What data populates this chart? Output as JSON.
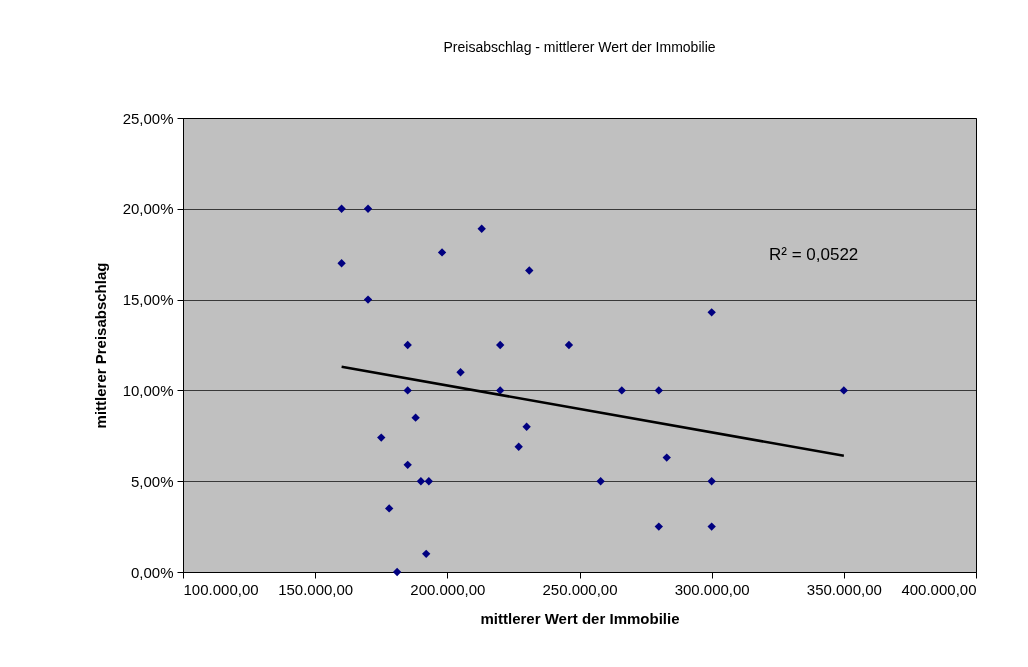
{
  "chart_data": {
    "type": "scatter",
    "title": "Preisabschlag - mittlerer Wert der Immobilie",
    "xlabel": "mittlerer Wert der Immobilie",
    "ylabel": "mittlerer Preisabschlag",
    "xlim": [
      100000,
      400000
    ],
    "xticks": [
      {
        "value": 100000,
        "label": "100.000,00"
      },
      {
        "value": 150000,
        "label": "150.000,00"
      },
      {
        "value": 200000,
        "label": "200.000,00"
      },
      {
        "value": 250000,
        "label": "250.000,00"
      },
      {
        "value": 300000,
        "label": "300.000,00"
      },
      {
        "value": 350000,
        "label": "350.000,00"
      },
      {
        "value": 400000,
        "label": "400.000,00"
      }
    ],
    "ylim": [
      0,
      25
    ],
    "yticks": [
      {
        "value": 0,
        "label": "0,00%"
      },
      {
        "value": 5,
        "label": "5,00%"
      },
      {
        "value": 10,
        "label": "10,00%"
      },
      {
        "value": 15,
        "label": "15,00%"
      },
      {
        "value": 20,
        "label": "20,00%"
      },
      {
        "value": 25,
        "label": "25,00%"
      }
    ],
    "grid": "y",
    "annotations": [
      "R² = 0,0522"
    ],
    "series": [
      {
        "marker": "diamond",
        "color": "#000080",
        "x": [
          160000,
          170000,
          213000,
          198000,
          160000,
          231000,
          170000,
          185000,
          220000,
          246000,
          205000,
          185000,
          220000,
          188000,
          230000,
          175000,
          227000,
          185000,
          190000,
          193000,
          178000,
          192000,
          181000,
          300000,
          266000,
          280000,
          350000,
          283000,
          258000,
          300000,
          280000,
          300000
        ],
        "values": [
          20,
          20,
          18.9,
          17.6,
          17,
          16.6,
          15,
          12.5,
          12.5,
          12.5,
          11,
          10,
          10,
          8.5,
          8,
          7.4,
          6.9,
          5.9,
          5,
          5,
          3.5,
          1,
          0,
          14.3,
          10,
          10,
          10,
          6.3,
          5,
          5,
          2.5,
          2.5
        ]
      },
      {
        "type": "line",
        "color": "#000000",
        "x": [
          160000,
          350000
        ],
        "values": [
          11.3,
          6.4
        ]
      }
    ]
  }
}
